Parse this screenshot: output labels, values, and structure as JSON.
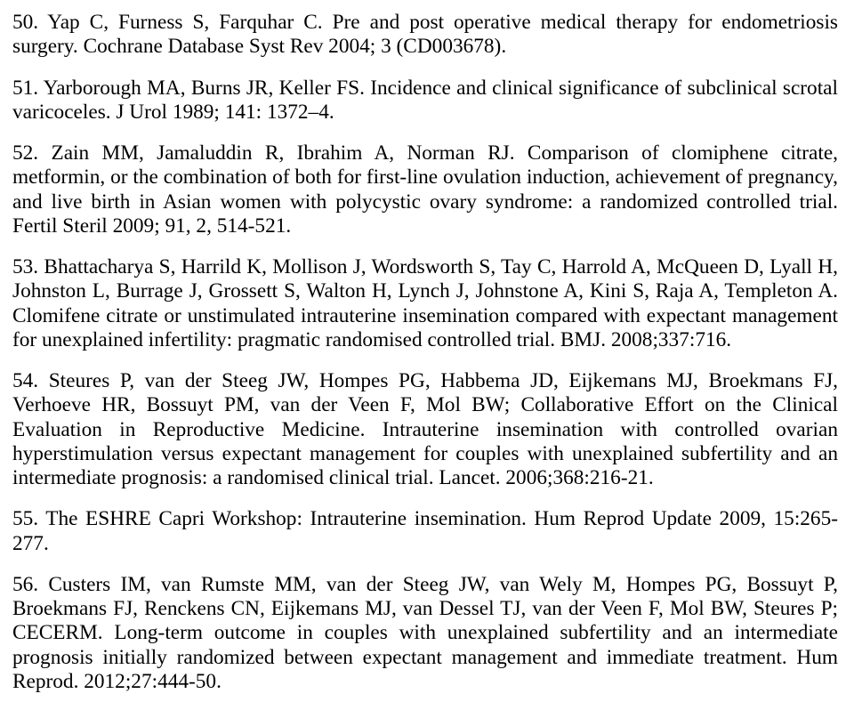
{
  "references": [
    "50. Yap C, Furness S, Farquhar C. Pre and post operative medical therapy for endometriosis surgery. Cochrane Database Syst Rev 2004; 3 (CD003678).",
    "51. Yarborough MA, Burns JR, Keller FS. Incidence and clinical significance of subclinical scrotal varicoceles. J Urol 1989; 141: 1372–4.",
    "52. Zain MM, Jamaluddin R, Ibrahim A, Norman RJ. Comparison of clomiphene citrate, metformin, or the combination of both for first-line ovulation induction, achievement of pregnancy, and live birth in Asian women with polycystic ovary syndrome: a randomized controlled trial. Fertil Steril 2009; 91, 2, 514-521.",
    "53. Bhattacharya S, Harrild K, Mollison J, Wordsworth S, Tay C, Harrold A, McQueen D, Lyall H, Johnston L, Burrage J, Grossett S, Walton H, Lynch J, Johnstone A, Kini S, Raja A, Templeton A. Clomifene citrate or unstimulated intrauterine insemination compared with expectant management for unexplained infertility: pragmatic randomised controlled trial. BMJ. 2008;337:716.",
    "54. Steures P, van der Steeg JW, Hompes PG, Habbema JD, Eijkemans MJ, Broekmans FJ, Verhoeve HR, Bossuyt PM, van der Veen F, Mol BW; Collaborative Effort on the Clinical Evaluation in Reproductive Medicine. Intrauterine insemination with controlled ovarian hyperstimulation versus expectant management for couples with unexplained subfertility and an intermediate prognosis: a randomised clinical trial. Lancet. 2006;368:216-21.",
    "55. The ESHRE Capri Workshop: Intrauterine insemination. Hum Reprod Update  2009, 15:265-277.",
    "56. Custers IM, van Rumste MM, van der Steeg JW, van Wely M, Hompes PG, Bossuyt P, Broekmans FJ, Renckens CN, Eijkemans MJ, van Dessel TJ, van der Veen F, Mol BW, Steures P; CECERM. Long-term outcome in couples with unexplained subfertility and an intermediate prognosis initially randomized between expectant management and immediate treatment. Hum Reprod. 2012;27:444-50."
  ]
}
